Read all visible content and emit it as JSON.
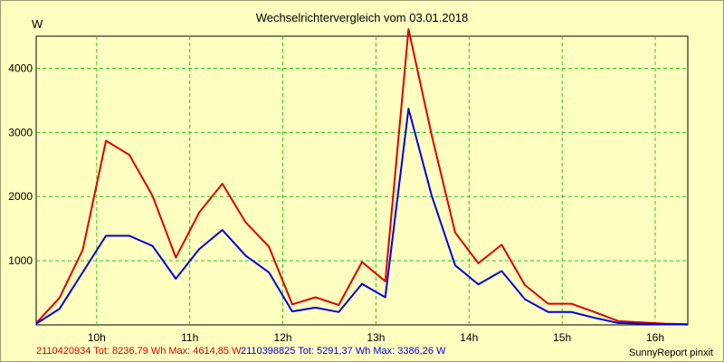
{
  "chart_data": {
    "type": "line",
    "title": "Wechselrichtervergleich vom 03.01.2018",
    "ylabel": "W",
    "ylim": [
      0,
      4500
    ],
    "xlim": [
      9.35,
      16.35
    ],
    "grid": true,
    "y_ticks": [
      1000,
      2000,
      3000,
      4000
    ],
    "y_tick_labels": [
      "1000",
      "2000",
      "3000",
      "4000"
    ],
    "x_ticks": [
      10,
      11,
      12,
      13,
      14,
      15,
      16
    ],
    "x_tick_labels": [
      "10h",
      "11h",
      "12h",
      "13h",
      "14h",
      "15h",
      "16h"
    ],
    "series": [
      {
        "name": "2110420934",
        "color": "#dd0000",
        "legend": "2110420934 Tot: 8236,79 Wh Max: 4614,85 W",
        "x": [
          9.35,
          9.6,
          9.85,
          10.1,
          10.35,
          10.6,
          10.85,
          11.1,
          11.35,
          11.6,
          11.85,
          12.1,
          12.35,
          12.6,
          12.85,
          13.1,
          13.35,
          13.6,
          13.85,
          14.1,
          14.35,
          14.6,
          14.85,
          15.1,
          15.35,
          15.6,
          15.85,
          16.1,
          16.35
        ],
        "values": [
          30,
          420,
          1170,
          2870,
          2650,
          2010,
          1050,
          1750,
          2200,
          1600,
          1220,
          320,
          430,
          310,
          980,
          680,
          4610,
          2950,
          1440,
          960,
          1250,
          620,
          330,
          330,
          200,
          60,
          40,
          20,
          10
        ]
      },
      {
        "name": "2110398825",
        "color": "#0000dd",
        "legend": "2110398825 Tot: 5291,37 Wh Max: 3386,26 W",
        "x": [
          9.35,
          9.6,
          9.85,
          10.1,
          10.35,
          10.6,
          10.85,
          11.1,
          11.35,
          11.6,
          11.85,
          12.1,
          12.35,
          12.6,
          12.85,
          13.1,
          13.35,
          13.6,
          13.85,
          14.1,
          14.35,
          14.6,
          14.85,
          15.1,
          15.35,
          15.6,
          15.85,
          16.1,
          16.35
        ],
        "values": [
          20,
          250,
          820,
          1390,
          1390,
          1230,
          720,
          1180,
          1480,
          1080,
          820,
          210,
          270,
          200,
          640,
          430,
          3370,
          2010,
          930,
          630,
          840,
          400,
          200,
          200,
          110,
          30,
          20,
          10,
          5
        ]
      }
    ]
  },
  "footer": {
    "credit": "SunnyReport pinxit"
  }
}
